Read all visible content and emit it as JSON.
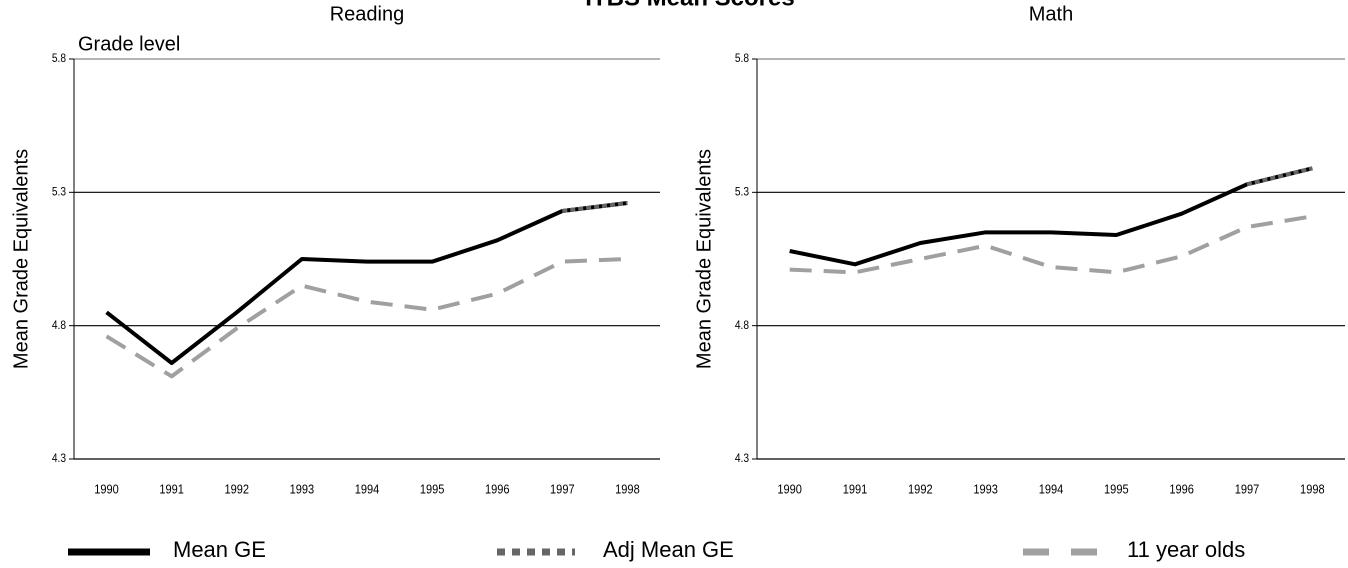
{
  "title": "ITBS Mean Scores",
  "chart_data": [
    {
      "type": "line",
      "title": "Reading",
      "annotation": "Grade level",
      "ylabel": "Mean Grade Equivalents",
      "categories": [
        "1990",
        "1991",
        "1992",
        "1993",
        "1994",
        "1995",
        "1996",
        "1997",
        "1998"
      ],
      "ylim": [
        4.3,
        5.8
      ],
      "yticks": [
        4.3,
        4.8,
        5.3,
        5.8
      ],
      "grid": true,
      "series": [
        {
          "name": "Mean GE",
          "color": "#000000",
          "style": "solid",
          "values": [
            4.85,
            4.66,
            4.85,
            5.05,
            5.04,
            5.04,
            5.12,
            5.23,
            5.26
          ]
        },
        {
          "name": "Adj Mean GE",
          "color": "#666666",
          "style": "dotted",
          "values": [
            null,
            null,
            null,
            null,
            null,
            null,
            null,
            5.23,
            5.26
          ]
        },
        {
          "name": "11 year olds",
          "color": "#a0a0a0",
          "style": "dashed",
          "values": [
            4.76,
            4.61,
            4.79,
            4.95,
            4.89,
            4.86,
            4.92,
            5.04,
            5.05
          ]
        }
      ]
    },
    {
      "type": "line",
      "title": "Math",
      "ylabel": "Mean Grade Equivalents",
      "categories": [
        "1990",
        "1991",
        "1992",
        "1993",
        "1994",
        "1995",
        "1996",
        "1997",
        "1998"
      ],
      "ylim": [
        4.3,
        5.8
      ],
      "yticks": [
        4.3,
        4.8,
        5.3,
        5.8
      ],
      "grid": true,
      "series": [
        {
          "name": "Mean GE",
          "color": "#000000",
          "style": "solid",
          "values": [
            5.08,
            5.03,
            5.11,
            5.15,
            5.15,
            5.14,
            5.22,
            5.33,
            5.39
          ]
        },
        {
          "name": "Adj Mean GE",
          "color": "#666666",
          "style": "dotted",
          "values": [
            null,
            null,
            null,
            null,
            null,
            null,
            null,
            5.33,
            5.39
          ]
        },
        {
          "name": "11 year olds",
          "color": "#a0a0a0",
          "style": "dashed",
          "values": [
            5.01,
            5.0,
            5.05,
            5.1,
            5.02,
            5.0,
            5.06,
            5.17,
            5.21
          ]
        }
      ]
    }
  ]
}
